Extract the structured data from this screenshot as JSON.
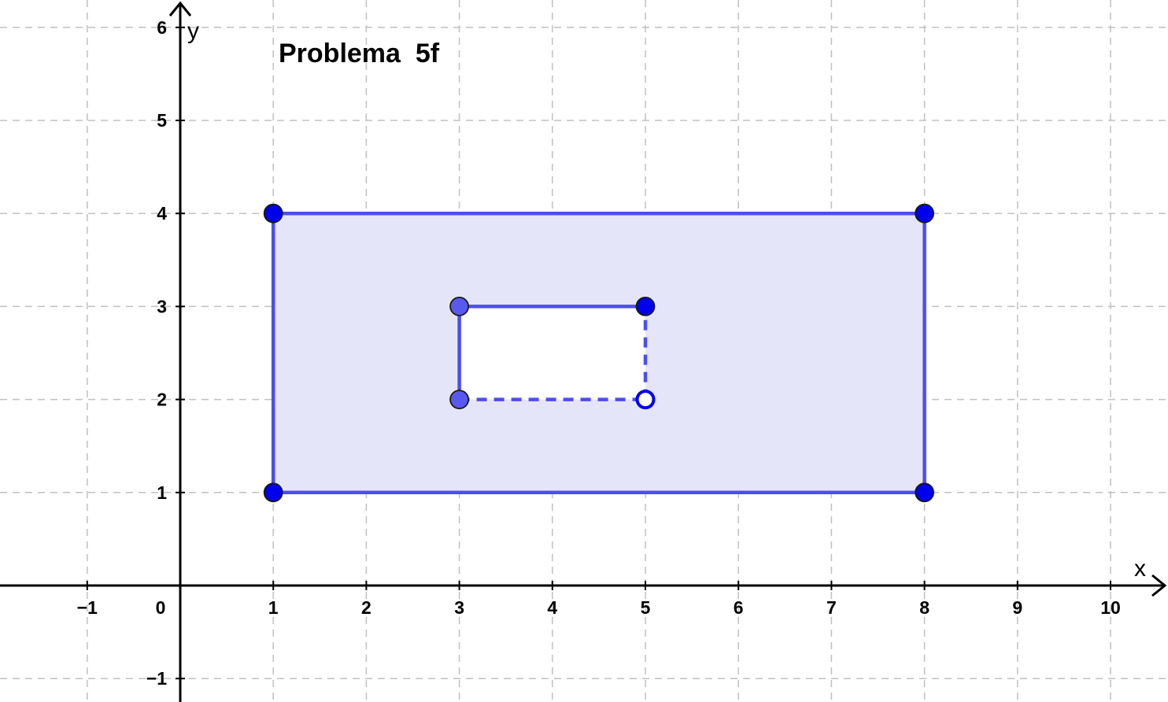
{
  "title": "Problema  5f",
  "axes": {
    "x_label": "x",
    "y_label": "y",
    "x_range": [
      -1.95,
      10.6
    ],
    "y_range": [
      -1.2,
      6.3
    ],
    "x_ticks": [
      {
        "value": -1,
        "label": "−1"
      },
      {
        "value": 0,
        "label": "0"
      },
      {
        "value": 1,
        "label": "1"
      },
      {
        "value": 2,
        "label": "2"
      },
      {
        "value": 3,
        "label": "3"
      },
      {
        "value": 4,
        "label": "4"
      },
      {
        "value": 5,
        "label": "5"
      },
      {
        "value": 6,
        "label": "6"
      },
      {
        "value": 7,
        "label": "7"
      },
      {
        "value": 8,
        "label": "8"
      },
      {
        "value": 9,
        "label": "9"
      },
      {
        "value": 10,
        "label": "10"
      }
    ],
    "y_ticks": [
      {
        "value": -1,
        "label": "−1"
      },
      {
        "value": 1,
        "label": "1"
      },
      {
        "value": 2,
        "label": "2"
      },
      {
        "value": 3,
        "label": "3"
      },
      {
        "value": 4,
        "label": "4"
      },
      {
        "value": 5,
        "label": "5"
      },
      {
        "value": 6,
        "label": "6"
      }
    ],
    "grid": true,
    "grid_style": "dashed"
  },
  "colors": {
    "shape_stroke": "#4d4df0",
    "shape_fill": "#e5e5fa",
    "inner_fill": "#ffffff",
    "point_dark": "#0000ee",
    "point_light": "#5959f2",
    "grid": "#c0c0c0",
    "axis": "#000000"
  },
  "outer_rectangle": {
    "vertices": [
      [
        1,
        1
      ],
      [
        8,
        1
      ],
      [
        8,
        4
      ],
      [
        1,
        4
      ]
    ]
  },
  "inner_rectangle": {
    "vertices": [
      [
        3,
        2
      ],
      [
        5,
        2
      ],
      [
        5,
        3
      ],
      [
        3,
        3
      ]
    ],
    "solid_edges": [
      [
        [
          3,
          2
        ],
        [
          3,
          3
        ]
      ],
      [
        [
          3,
          3
        ],
        [
          5,
          3
        ]
      ]
    ],
    "dashed_edges": [
      [
        [
          3,
          2
        ],
        [
          5,
          2
        ]
      ],
      [
        [
          5,
          2
        ],
        [
          5,
          3
        ]
      ]
    ]
  },
  "points": [
    {
      "x": 1,
      "y": 1,
      "style": "dark"
    },
    {
      "x": 8,
      "y": 1,
      "style": "dark"
    },
    {
      "x": 8,
      "y": 4,
      "style": "dark"
    },
    {
      "x": 1,
      "y": 4,
      "style": "dark"
    },
    {
      "x": 3,
      "y": 3,
      "style": "light"
    },
    {
      "x": 3,
      "y": 2,
      "style": "light"
    },
    {
      "x": 5,
      "y": 3,
      "style": "dark"
    },
    {
      "x": 5,
      "y": 2,
      "style": "open"
    }
  ]
}
